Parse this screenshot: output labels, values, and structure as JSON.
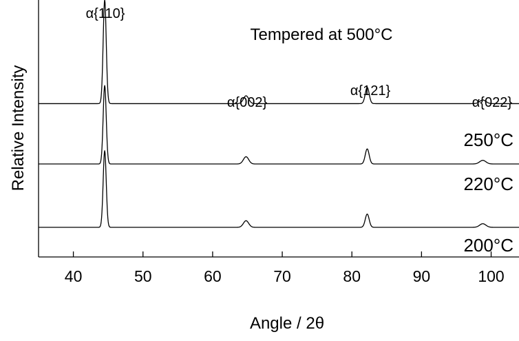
{
  "chart_data": {
    "type": "line",
    "title": "Tempered at 500°C",
    "xlabel": "Angle / 2θ",
    "ylabel": "Relative Intensity",
    "xlim": [
      35,
      104
    ],
    "x_ticks": [
      40,
      50,
      60,
      70,
      80,
      90,
      100
    ],
    "y_ticks_shown": false,
    "grid": false,
    "peaks": [
      {
        "label": "α{110}",
        "x": 44.5
      },
      {
        "label": "α{002}",
        "x": 64.8
      },
      {
        "label": "α{121}",
        "x": 82.2
      },
      {
        "label": "α{022}",
        "x": 98.8
      }
    ],
    "series": [
      {
        "name": "250°C",
        "baseline": 2.05,
        "peaks": [
          {
            "x": 44.5,
            "height": 1.72
          },
          {
            "x": 64.8,
            "height": 0.13
          },
          {
            "x": 82.2,
            "height": 0.27
          },
          {
            "x": 98.8,
            "height": 0.06
          }
        ]
      },
      {
        "name": "220°C",
        "baseline": 1.05,
        "peaks": [
          {
            "x": 44.5,
            "height": 1.3
          },
          {
            "x": 64.8,
            "height": 0.12
          },
          {
            "x": 82.2,
            "height": 0.25
          },
          {
            "x": 98.8,
            "height": 0.06
          }
        ]
      },
      {
        "name": "200°C",
        "baseline": 0.0,
        "peaks": [
          {
            "x": 44.5,
            "height": 1.27
          },
          {
            "x": 64.8,
            "height": 0.11
          },
          {
            "x": 82.2,
            "height": 0.22
          },
          {
            "x": 98.8,
            "height": 0.06
          }
        ]
      }
    ]
  }
}
